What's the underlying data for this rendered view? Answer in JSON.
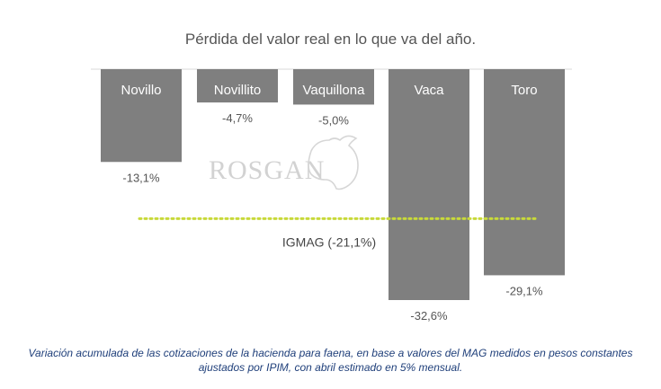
{
  "chart_data": {
    "type": "bar",
    "title": "Pérdida del valor real en lo que va del año.",
    "categories": [
      "Novillo",
      "Novillito",
      "Vaquillona",
      "Vaca",
      "Toro"
    ],
    "values": [
      -13.1,
      -4.7,
      -5.0,
      -32.6,
      -29.1
    ],
    "value_labels": [
      "-13,1%",
      "-4,7%",
      "-5,0%",
      "-32,6%",
      "-29,1%"
    ],
    "ylim": [
      -32.6,
      0
    ],
    "bar_color": "#7f7f7f",
    "reference_line": {
      "label": "IGMAG (-21,1%)",
      "value": -21.1,
      "color": "#c8d93a",
      "style": "dotted"
    },
    "watermark": "ROSGAN",
    "grid": false
  },
  "footnote": "Variación acumulada de las cotizaciones de la hacienda para faena, en base a valores del MAG medidos en pesos constantes ajustados por IPIM, con abril estimado en 5% mensual."
}
